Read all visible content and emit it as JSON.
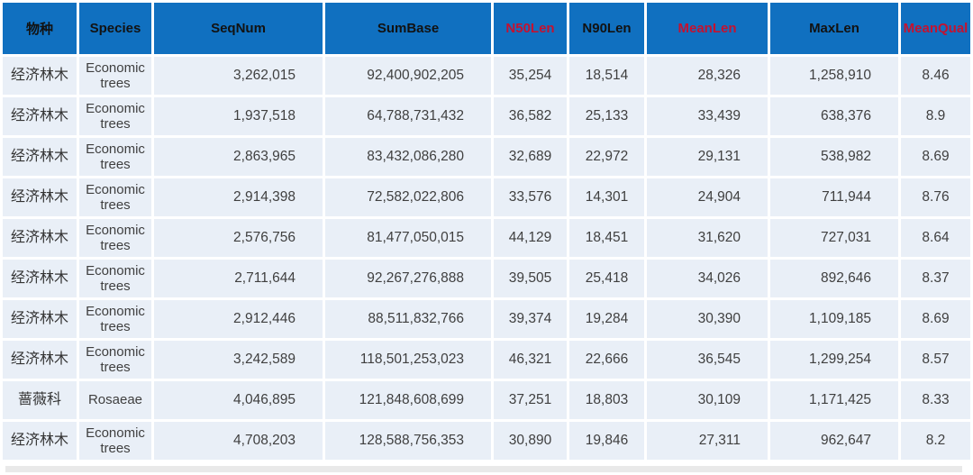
{
  "colors": {
    "header_bg": "#1070C0",
    "header_text": "#121212",
    "header_red": "#C41230",
    "row_bg": "#E9EFF7",
    "row_text": "#3F3F3F",
    "grid": "#FFFFFF"
  },
  "table": {
    "columns": [
      {
        "key": "species_cn",
        "label": "物种",
        "color": "black",
        "align": "center"
      },
      {
        "key": "species_en",
        "label": "Species",
        "color": "black",
        "align": "center"
      },
      {
        "key": "seqnum",
        "label": "SeqNum",
        "color": "black",
        "align": "right"
      },
      {
        "key": "sumbase",
        "label": "SumBase",
        "color": "black",
        "align": "right"
      },
      {
        "key": "n50len",
        "label": "N50Len",
        "color": "red",
        "align": "center"
      },
      {
        "key": "n90len",
        "label": "N90Len",
        "color": "black",
        "align": "center"
      },
      {
        "key": "meanlen",
        "label": "MeanLen",
        "color": "red",
        "align": "right"
      },
      {
        "key": "maxlen",
        "label": "MaxLen",
        "color": "black",
        "align": "right"
      },
      {
        "key": "meanqual",
        "label": "MeanQual",
        "color": "red",
        "align": "center"
      }
    ],
    "rows": [
      [
        "经济林木",
        "Economic trees",
        "3,262,015",
        "92,400,902,205",
        "35,254",
        "18,514",
        "28,326",
        "1,258,910",
        "8.46"
      ],
      [
        "经济林木",
        "Economic trees",
        "1,937,518",
        "64,788,731,432",
        "36,582",
        "25,133",
        "33,439",
        "638,376",
        "8.9"
      ],
      [
        "经济林木",
        "Economic trees",
        "2,863,965",
        "83,432,086,280",
        "32,689",
        "22,972",
        "29,131",
        "538,982",
        "8.69"
      ],
      [
        "经济林木",
        "Economic trees",
        "2,914,398",
        "72,582,022,806",
        "33,576",
        "14,301",
        "24,904",
        "711,944",
        "8.76"
      ],
      [
        "经济林木",
        "Economic trees",
        "2,576,756",
        "81,477,050,015",
        "44,129",
        "18,451",
        "31,620",
        "727,031",
        "8.64"
      ],
      [
        "经济林木",
        "Economic trees",
        "2,711,644",
        "92,267,276,888",
        "39,505",
        "25,418",
        "34,026",
        "892,646",
        "8.37"
      ],
      [
        "经济林木",
        "Economic trees",
        "2,912,446",
        "88,511,832,766",
        "39,374",
        "19,284",
        "30,390",
        "1,109,185",
        "8.69"
      ],
      [
        "经济林木",
        "Economic trees",
        "3,242,589",
        "118,501,253,023",
        "46,321",
        "22,666",
        "36,545",
        "1,299,254",
        "8.57"
      ],
      [
        "蔷薇科",
        "Rosaeae",
        "4,046,895",
        "121,848,608,699",
        "37,251",
        "18,803",
        "30,109",
        "1,171,425",
        "8.33"
      ],
      [
        "经济林木",
        "Economic trees",
        "4,708,203",
        "128,588,756,353",
        "30,890",
        "19,846",
        "27,311",
        "962,647",
        "8.2"
      ]
    ]
  }
}
